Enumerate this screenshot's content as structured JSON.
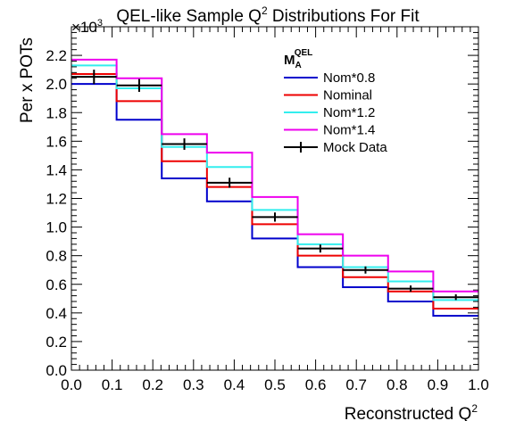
{
  "chart_data": {
    "type": "line",
    "title": "QEL-like Sample Q",
    "title_sup": "2",
    "title_rest": " Distributions For Fit",
    "xlabel": "Reconstructed Q",
    "xlabel_sup": "2",
    "ylabel": "Per x POTs",
    "y_multiplier_base": "×10",
    "y_multiplier_exp": "3",
    "xlim": [
      0.0,
      1.0
    ],
    "ylim": [
      0.0,
      2.4
    ],
    "x_ticks": [
      "0.0",
      "0.1",
      "0.2",
      "0.3",
      "0.4",
      "0.5",
      "0.6",
      "0.7",
      "0.8",
      "0.9",
      "1.0"
    ],
    "y_ticks": [
      "0.0",
      "0.2",
      "0.4",
      "0.6",
      "0.8",
      "1.0",
      "1.2",
      "1.4",
      "1.6",
      "1.8",
      "2.0",
      "2.2"
    ],
    "bin_edges": [
      0.0,
      0.111,
      0.222,
      0.333,
      0.444,
      0.556,
      0.667,
      0.778,
      0.889,
      1.0
    ],
    "legend_title": "M",
    "legend_title_sub": "A",
    "legend_title_sup": "QEL",
    "legend_position": "top-right",
    "series": [
      {
        "name": "Nom*0.8",
        "color": "#0000cc",
        "kind": "histogram",
        "values": [
          2.0,
          1.75,
          1.34,
          1.18,
          0.92,
          0.72,
          0.58,
          0.48,
          0.38
        ]
      },
      {
        "name": "Nominal",
        "color": "#ee0000",
        "kind": "histogram",
        "values": [
          2.07,
          1.88,
          1.46,
          1.28,
          1.02,
          0.8,
          0.65,
          0.55,
          0.43
        ]
      },
      {
        "name": "Nom*1.2",
        "color": "#33eeee",
        "kind": "histogram",
        "values": [
          2.13,
          1.97,
          1.56,
          1.42,
          1.12,
          0.88,
          0.72,
          0.62,
          0.49
        ]
      },
      {
        "name": "Nom*1.4",
        "color": "#ee00ee",
        "kind": "histogram",
        "values": [
          2.17,
          2.04,
          1.65,
          1.52,
          1.21,
          0.95,
          0.8,
          0.69,
          0.55
        ]
      },
      {
        "name": "Mock Data",
        "color": "#000000",
        "kind": "points",
        "values": [
          2.05,
          1.99,
          1.58,
          1.31,
          1.07,
          0.85,
          0.7,
          0.57,
          0.51
        ],
        "errors": [
          0.05,
          0.045,
          0.04,
          0.035,
          0.032,
          0.028,
          0.025,
          0.022,
          0.02
        ]
      }
    ]
  }
}
